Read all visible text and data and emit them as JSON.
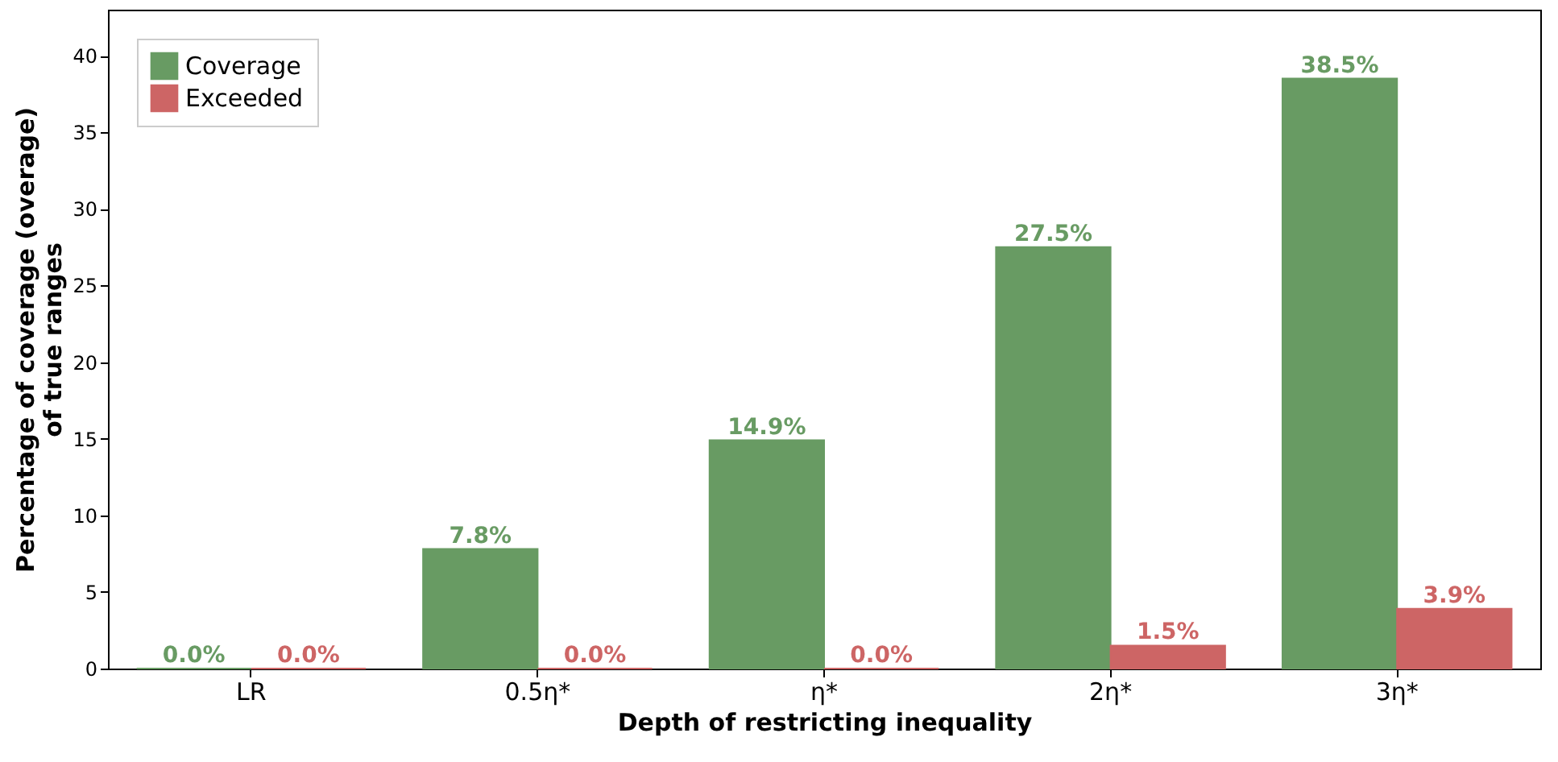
{
  "chart_data": {
    "type": "bar",
    "categories": [
      "LR",
      "0.5η*",
      "η*",
      "2η*",
      "3η*"
    ],
    "series": [
      {
        "name": "Coverage",
        "color": "#689b63",
        "values": [
          0.0,
          7.8,
          14.9,
          27.5,
          38.5
        ],
        "value_labels": [
          "0.0%",
          "7.8%",
          "14.9%",
          "27.5%",
          "38.5%"
        ]
      },
      {
        "name": "Exceeded",
        "color": "#cd6565",
        "values": [
          0.0,
          0.0,
          0.0,
          1.5,
          3.9
        ],
        "value_labels": [
          "0.0%",
          "0.0%",
          "0.0%",
          "1.5%",
          "3.9%"
        ]
      }
    ],
    "xlabel": "Depth of restricting inequality",
    "ylabel": "Percentage of coverage (overage)\nof true ranges",
    "ylim": [
      0,
      43
    ],
    "yticks": [
      0,
      5,
      10,
      15,
      20,
      25,
      30,
      35,
      40
    ],
    "legend": "top left",
    "grid": false
  }
}
